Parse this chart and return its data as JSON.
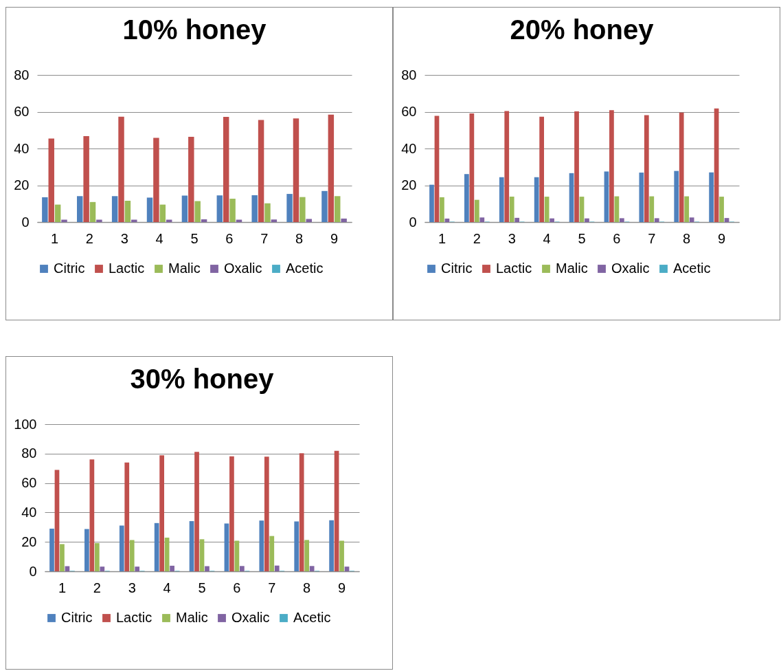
{
  "chart_data": [
    {
      "type": "bar",
      "title": "10% honey",
      "categories": [
        "1",
        "2",
        "3",
        "4",
        "5",
        "6",
        "7",
        "8",
        "9"
      ],
      "ylim": [
        0,
        80
      ],
      "yticks": [
        0,
        20,
        40,
        60,
        80
      ],
      "grid": "y",
      "legend": "bottom",
      "series": [
        {
          "name": "Citric",
          "color": "#4f81bd",
          "values": [
            13.5,
            14.1,
            14.1,
            13.3,
            14.4,
            14.5,
            14.6,
            15.3,
            16.9
          ]
        },
        {
          "name": "Lactic",
          "color": "#c0504d",
          "values": [
            45.4,
            46.7,
            57.3,
            45.8,
            46.4,
            57.2,
            55.5,
            56.4,
            58.4
          ]
        },
        {
          "name": "Malic",
          "color": "#9bbb59",
          "values": [
            9.5,
            10.9,
            11.6,
            9.5,
            11.4,
            12.7,
            10.2,
            13.6,
            14.1
          ]
        },
        {
          "name": "Oxalic",
          "color": "#8064a2",
          "values": [
            1.3,
            1.3,
            1.3,
            1.3,
            1.5,
            1.3,
            1.4,
            1.7,
            1.9
          ]
        },
        {
          "name": "Acetic",
          "color": "#4bacc6",
          "values": [
            null,
            null,
            null,
            null,
            null,
            null,
            null,
            null,
            null
          ]
        }
      ]
    },
    {
      "type": "bar",
      "title": "20% honey",
      "categories": [
        "1",
        "2",
        "3",
        "4",
        "5",
        "6",
        "7",
        "8",
        "9"
      ],
      "ylim": [
        0,
        80
      ],
      "yticks": [
        0,
        20,
        40,
        60,
        80
      ],
      "grid": "y",
      "legend": "bottom",
      "series": [
        {
          "name": "Citric",
          "color": "#4f81bd",
          "values": [
            20.3,
            26.1,
            24.4,
            24.4,
            26.6,
            27.5,
            26.9,
            27.8,
            27.0
          ]
        },
        {
          "name": "Lactic",
          "color": "#c0504d",
          "values": [
            57.8,
            59.1,
            60.4,
            57.3,
            60.2,
            60.8,
            58.1,
            59.5,
            61.8
          ]
        },
        {
          "name": "Malic",
          "color": "#9bbb59",
          "values": [
            13.5,
            12.1,
            13.8,
            13.8,
            13.8,
            14.0,
            14.0,
            14.0,
            13.8
          ]
        },
        {
          "name": "Oxalic",
          "color": "#8064a2",
          "values": [
            1.9,
            2.5,
            2.3,
            2.0,
            2.0,
            2.1,
            2.1,
            2.5,
            2.2
          ]
        },
        {
          "name": "Acetic",
          "color": "#4bacc6",
          "values": [
            0.2,
            0.2,
            0.2,
            0.2,
            0.2,
            0.2,
            0.2,
            0.2,
            0.2
          ]
        }
      ]
    },
    {
      "type": "bar",
      "title": "30% honey",
      "categories": [
        "1",
        "2",
        "3",
        "4",
        "5",
        "6",
        "7",
        "8",
        "9"
      ],
      "ylim": [
        0,
        100
      ],
      "yticks": [
        0,
        20,
        40,
        60,
        80,
        100
      ],
      "grid": "y",
      "legend": "bottom",
      "series": [
        {
          "name": "Citric",
          "color": "#4f81bd",
          "values": [
            29.0,
            28.7,
            31.1,
            32.8,
            34.1,
            32.5,
            34.5,
            33.9,
            34.7
          ]
        },
        {
          "name": "Lactic",
          "color": "#c0504d",
          "values": [
            68.9,
            76.0,
            74.0,
            78.9,
            81.2,
            78.1,
            77.9,
            80.3,
            81.9
          ]
        },
        {
          "name": "Malic",
          "color": "#9bbb59",
          "values": [
            18.5,
            19.2,
            21.3,
            22.9,
            21.8,
            20.8,
            24.0,
            21.3,
            20.8
          ]
        },
        {
          "name": "Oxalic",
          "color": "#8064a2",
          "values": [
            3.5,
            3.2,
            3.2,
            3.8,
            3.5,
            3.6,
            3.9,
            3.6,
            3.2
          ]
        },
        {
          "name": "Acetic",
          "color": "#4bacc6",
          "values": [
            0.3,
            0.3,
            0.3,
            0.3,
            0.3,
            0.3,
            0.3,
            0.3,
            0.3
          ]
        }
      ]
    }
  ]
}
